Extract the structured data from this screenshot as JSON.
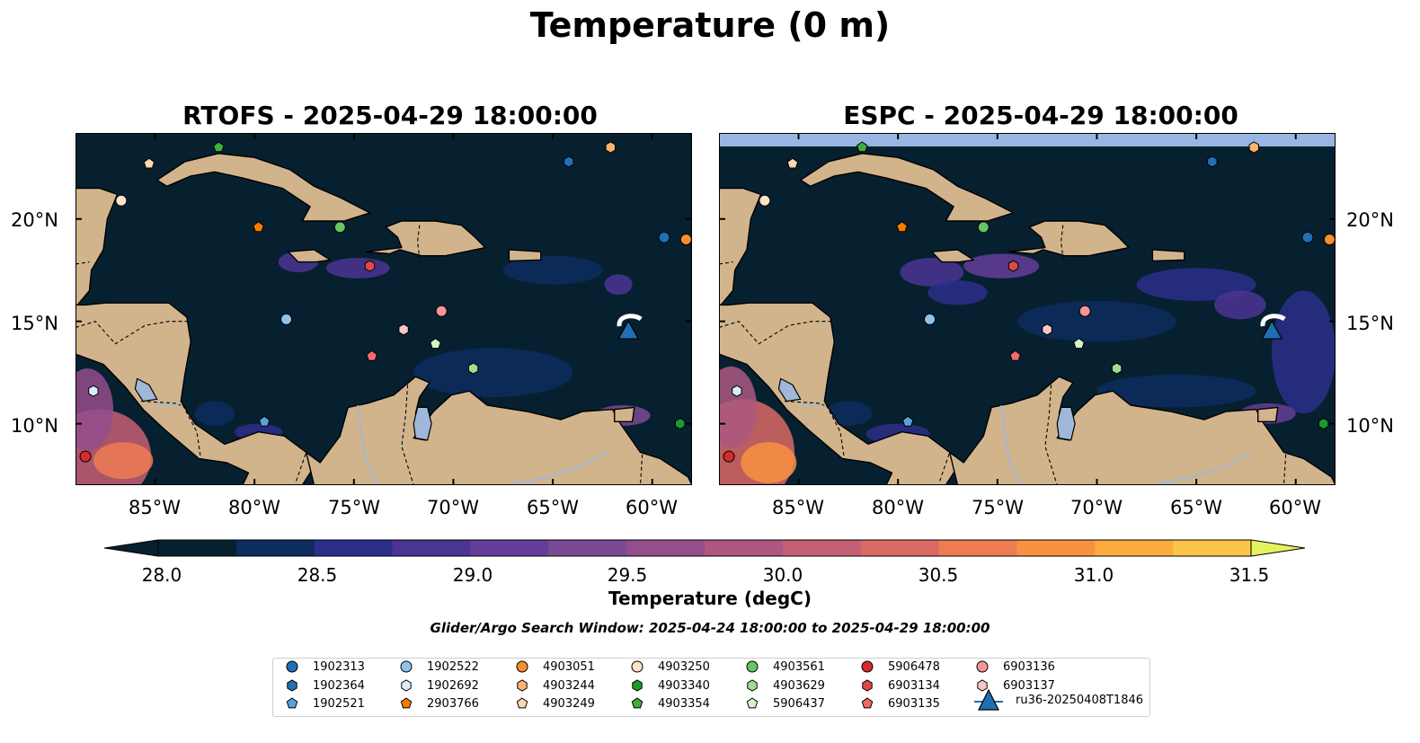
{
  "figure": {
    "title": "Temperature (0 m)",
    "panels": [
      {
        "title": "RTOFS - 2025-04-29 18:00:00"
      },
      {
        "title": "ESPC - 2025-04-29 18:00:00"
      }
    ],
    "lon_ticks": [
      "85°W",
      "80°W",
      "75°W",
      "70°W",
      "65°W",
      "60°W"
    ],
    "lat_ticks": [
      "20°N",
      "15°N",
      "10°N"
    ],
    "colorbar": {
      "label": "Temperature (degC)",
      "ticks": [
        "28.0",
        "28.5",
        "29.0",
        "29.5",
        "30.0",
        "30.5",
        "31.0",
        "31.5"
      ],
      "min": 28.0,
      "max": 31.5,
      "colors": [
        "#06202e",
        "#0c2d5e",
        "#2b2f8a",
        "#4b3594",
        "#643f99",
        "#7a4a95",
        "#944e8c",
        "#ac5880",
        "#c55f74",
        "#db6a65",
        "#ee7b52",
        "#f99142",
        "#fcab3e",
        "#fbc44b",
        "#f2dd5a",
        "#e4f25e"
      ]
    },
    "search_window": "Glider/Argo Search Window: 2025-04-24 18:00:00 to 2025-04-29 18:00:00",
    "extent": {
      "lon": [
        -89,
        -58
      ],
      "lat": [
        7,
        24.2
      ]
    },
    "land_color": "#d2b48c",
    "ocean_color": "#072030",
    "river_color": "#9fb8da"
  },
  "legend": [
    {
      "id": "1902313",
      "marker": "circle",
      "color": "#1f6fb2"
    },
    {
      "id": "1902364",
      "marker": "hexagon",
      "color": "#1f6fb2"
    },
    {
      "id": "1902521",
      "marker": "pentagon",
      "color": "#5aa0dc"
    },
    {
      "id": "1902522",
      "marker": "circle",
      "color": "#8fc3ea"
    },
    {
      "id": "1902692",
      "marker": "hexagon",
      "color": "#d8ebf8"
    },
    {
      "id": "2903766",
      "marker": "pentagon",
      "color": "#f57c00"
    },
    {
      "id": "4903051",
      "marker": "circle",
      "color": "#f98e2c"
    },
    {
      "id": "4903244",
      "marker": "hexagon",
      "color": "#fbb36e"
    },
    {
      "id": "4903249",
      "marker": "pentagon",
      "color": "#fdd7b0"
    },
    {
      "id": "4903250",
      "marker": "circle",
      "color": "#fde3c8"
    },
    {
      "id": "4903340",
      "marker": "hexagon",
      "color": "#1d9a2b"
    },
    {
      "id": "4903354",
      "marker": "pentagon",
      "color": "#3fae3a"
    },
    {
      "id": "4903561",
      "marker": "circle",
      "color": "#67c562"
    },
    {
      "id": "4903629",
      "marker": "hexagon",
      "color": "#9fdc92"
    },
    {
      "id": "5906437",
      "marker": "pentagon",
      "color": "#d2f5c8"
    },
    {
      "id": "5906478",
      "marker": "circle",
      "color": "#d42b2b"
    },
    {
      "id": "6903134",
      "marker": "hexagon",
      "color": "#e04848"
    },
    {
      "id": "6903135",
      "marker": "pentagon",
      "color": "#f06a6a"
    },
    {
      "id": "6903136",
      "marker": "circle",
      "color": "#f49595"
    },
    {
      "id": "6903137",
      "marker": "hexagon",
      "color": "#fbc5c5"
    },
    {
      "id": "ru36-20250408T1846",
      "marker": "triangle-line",
      "color": "#1f6fb2"
    }
  ],
  "floats": [
    {
      "id": "1902313",
      "lon": -59.4,
      "lat": 19.1
    },
    {
      "id": "1902364",
      "lon": -64.2,
      "lat": 22.8
    },
    {
      "id": "1902521",
      "lon": -79.5,
      "lat": 10.1
    },
    {
      "id": "1902522",
      "lon": -78.4,
      "lat": 15.1
    },
    {
      "id": "1902692",
      "lon": -88.1,
      "lat": 11.6
    },
    {
      "id": "2903766",
      "lon": -79.8,
      "lat": 19.6
    },
    {
      "id": "4903051",
      "lon": -58.3,
      "lat": 19.0
    },
    {
      "id": "4903244",
      "lon": -62.1,
      "lat": 23.5
    },
    {
      "id": "4903249",
      "lon": -85.3,
      "lat": 22.7
    },
    {
      "id": "4903250",
      "lon": -86.7,
      "lat": 20.9
    },
    {
      "id": "4903340",
      "lon": -58.6,
      "lat": 10.0
    },
    {
      "id": "4903354",
      "lon": -81.8,
      "lat": 23.5
    },
    {
      "id": "4903561",
      "lon": -75.7,
      "lat": 19.6
    },
    {
      "id": "4903629",
      "lon": -69.0,
      "lat": 12.7
    },
    {
      "id": "5906437",
      "lon": -70.9,
      "lat": 13.9
    },
    {
      "id": "5906478",
      "lon": -88.5,
      "lat": 8.4
    },
    {
      "id": "6903134",
      "lon": -74.2,
      "lat": 17.7
    },
    {
      "id": "6903135",
      "lon": -74.1,
      "lat": 13.3
    },
    {
      "id": "6903136",
      "lon": -70.6,
      "lat": 15.5
    },
    {
      "id": "6903137",
      "lon": -72.5,
      "lat": 14.6
    }
  ],
  "glider": {
    "id": "ru36-20250408T1846",
    "lon": -61.2,
    "lat": 14.5
  }
}
